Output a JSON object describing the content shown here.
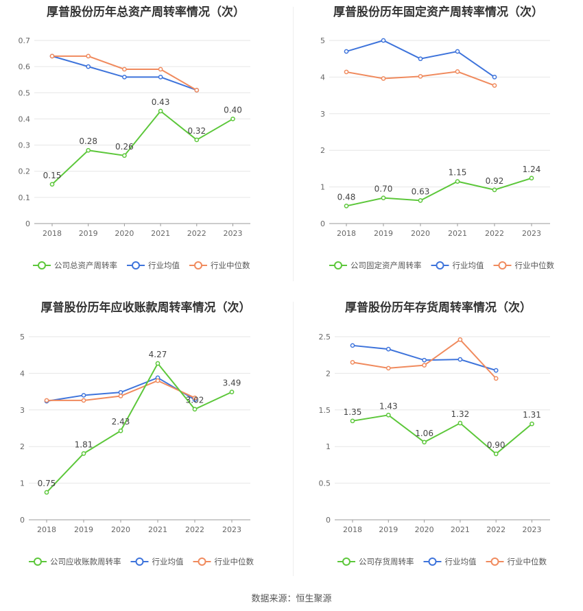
{
  "source_text": "数据来源：恒生聚源",
  "colors": {
    "company": "#5CC73A",
    "avg": "#3D73DB",
    "median": "#F08A5D",
    "grid": "#E6E6E6",
    "axis": "#999999"
  },
  "chart_data": [
    {
      "type": "line",
      "title": "厚普股份历年总资产周转率情况（次）",
      "categories": [
        "2018",
        "2019",
        "2020",
        "2021",
        "2022",
        "2023"
      ],
      "ylim": [
        0,
        0.7
      ],
      "yticks": [
        "0",
        "0.1",
        "0.2",
        "0.3",
        "0.4",
        "0.5",
        "0.6",
        "0.7"
      ],
      "series": [
        {
          "name": "公司总资产周转率",
          "values": [
            0.15,
            0.28,
            0.26,
            0.43,
            0.32,
            0.4
          ],
          "labels": [
            "0.15",
            "0.28",
            "0.26",
            "0.43",
            "0.32",
            "0.40"
          ]
        },
        {
          "name": "行业均值",
          "values": [
            0.64,
            0.6,
            0.56,
            0.56,
            0.51,
            null
          ]
        },
        {
          "name": "行业中位数",
          "values": [
            0.64,
            0.64,
            0.59,
            0.59,
            0.51,
            null
          ]
        }
      ]
    },
    {
      "type": "line",
      "title": "厚普股份历年固定资产周转率情况（次）",
      "categories": [
        "2018",
        "2019",
        "2020",
        "2021",
        "2022",
        "2023"
      ],
      "ylim": [
        0,
        5
      ],
      "yticks": [
        "0",
        "1",
        "2",
        "3",
        "4",
        "5"
      ],
      "series": [
        {
          "name": "公司固定资产周转率",
          "values": [
            0.48,
            0.7,
            0.63,
            1.15,
            0.92,
            1.24
          ],
          "labels": [
            "0.48",
            "0.70",
            "0.63",
            "1.15",
            "0.92",
            "1.24"
          ]
        },
        {
          "name": "行业均值",
          "values": [
            4.7,
            5.0,
            4.5,
            4.7,
            4.0,
            null
          ]
        },
        {
          "name": "行业中位数",
          "values": [
            4.14,
            3.96,
            4.02,
            4.15,
            3.77,
            null
          ]
        }
      ]
    },
    {
      "type": "line",
      "title": "厚普股份历年应收账款周转率情况（次）",
      "categories": [
        "2018",
        "2019",
        "2020",
        "2021",
        "2022",
        "2023"
      ],
      "ylim": [
        0,
        5
      ],
      "yticks": [
        "0",
        "1",
        "2",
        "3",
        "4",
        "5"
      ],
      "series": [
        {
          "name": "公司应收账款周转率",
          "values": [
            0.75,
            1.81,
            2.43,
            4.27,
            3.02,
            3.49
          ],
          "labels": [
            "0.75",
            "1.81",
            "2.43",
            "4.27",
            "3.02",
            "3.49"
          ]
        },
        {
          "name": "行业均值",
          "values": [
            3.24,
            3.4,
            3.48,
            3.88,
            3.28,
            null
          ]
        },
        {
          "name": "行业中位数",
          "values": [
            3.26,
            3.26,
            3.38,
            3.8,
            3.33,
            null
          ]
        }
      ]
    },
    {
      "type": "line",
      "title": "厚普股份历年存货周转率情况（次）",
      "categories": [
        "2018",
        "2019",
        "2020",
        "2021",
        "2022",
        "2023"
      ],
      "ylim": [
        0,
        2.5
      ],
      "yticks": [
        "0",
        "0.5",
        "1",
        "1.5",
        "2",
        "2.5"
      ],
      "series": [
        {
          "name": "公司存货周转率",
          "values": [
            1.35,
            1.43,
            1.06,
            1.32,
            0.9,
            1.31
          ],
          "labels": [
            "1.35",
            "1.43",
            "1.06",
            "1.32",
            "0.90",
            "1.31"
          ]
        },
        {
          "name": "行业均值",
          "values": [
            2.38,
            2.33,
            2.18,
            2.19,
            2.04,
            null
          ]
        },
        {
          "name": "行业中位数",
          "values": [
            2.15,
            2.07,
            2.11,
            2.46,
            1.93,
            null
          ]
        }
      ]
    }
  ]
}
